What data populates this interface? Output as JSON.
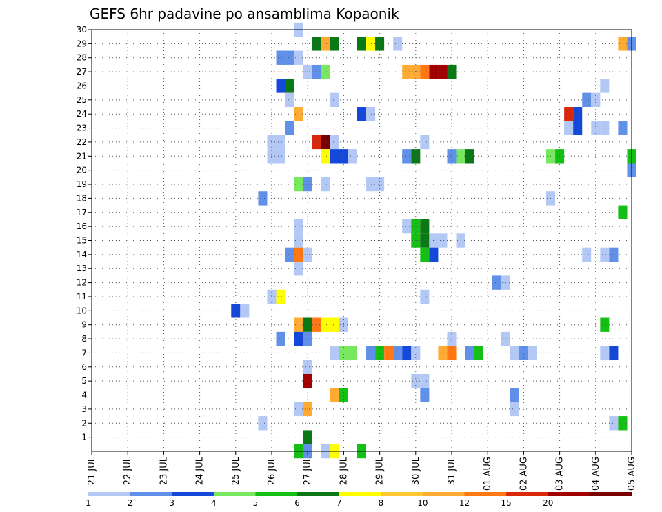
{
  "chart_data": {
    "type": "heatmap",
    "title": "GEFS 6hr padavine po ansamblima Kopaonik",
    "xlabel": "",
    "ylabel": "",
    "x_ticks": [
      "21 JUL",
      "22 JUL",
      "23 JUL",
      "24 JUL",
      "25 JUL",
      "26 JUL",
      "27 JUL",
      "28 JUL",
      "29 JUL",
      "30 JUL",
      "31 JUL",
      "01 AUG",
      "02 AUG",
      "03 AUG",
      "04 AUG",
      "05 AUG"
    ],
    "xlim": [
      0,
      15
    ],
    "y_ticks": [
      "1",
      "2",
      "3",
      "4",
      "5",
      "6",
      "7",
      "8",
      "9",
      "10",
      "11",
      "12",
      "13",
      "14",
      "15",
      "16",
      "17",
      "18",
      "19",
      "20",
      "21",
      "22",
      "23",
      "24",
      "25",
      "26",
      "27",
      "28",
      "29",
      "30"
    ],
    "ylim": [
      0,
      30
    ],
    "grid": true,
    "colorbar": {
      "labels": [
        "1",
        "2",
        "3",
        "4",
        "5",
        "6",
        "7",
        "8",
        "10",
        "12",
        "15",
        "20"
      ],
      "colors": [
        "#b4c8f5",
        "#6090e8",
        "#1448d8",
        "#78e860",
        "#14c014",
        "#0a7814",
        "#ffff00",
        "#ffc832",
        "#ffaa32",
        "#ff7814",
        "#dc280a",
        "#a00000",
        "#780000"
      ]
    },
    "cells": [
      [
        5.75,
        30,
        0
      ],
      [
        6.25,
        29,
        5
      ],
      [
        6.5,
        29,
        8
      ],
      [
        6.75,
        29,
        5
      ],
      [
        7.5,
        29,
        5
      ],
      [
        7.75,
        29,
        6
      ],
      [
        8,
        29,
        5
      ],
      [
        8.5,
        29,
        0
      ],
      [
        14.75,
        29,
        8
      ],
      [
        15,
        29,
        1
      ],
      [
        5.25,
        28,
        1
      ],
      [
        5.5,
        28,
        1
      ],
      [
        5.75,
        28,
        0
      ],
      [
        6,
        27,
        0
      ],
      [
        6.25,
        27,
        1
      ],
      [
        6.5,
        27,
        3
      ],
      [
        8.75,
        27,
        8
      ],
      [
        9,
        27,
        8
      ],
      [
        9.25,
        27,
        9
      ],
      [
        9.5,
        27,
        11
      ],
      [
        9.75,
        27,
        11
      ],
      [
        10,
        27,
        5
      ],
      [
        14.25,
        26,
        0
      ],
      [
        5.25,
        26,
        2
      ],
      [
        5.5,
        26,
        5
      ],
      [
        5.5,
        25,
        0
      ],
      [
        6.75,
        25,
        0
      ],
      [
        13.75,
        25,
        1
      ],
      [
        14,
        25,
        0
      ],
      [
        5.75,
        24,
        8
      ],
      [
        7.5,
        24,
        2
      ],
      [
        7.75,
        24,
        0
      ],
      [
        13.25,
        24,
        10
      ],
      [
        13.5,
        24,
        2
      ],
      [
        5.5,
        23,
        1
      ],
      [
        13.25,
        23,
        0
      ],
      [
        13.5,
        23,
        2
      ],
      [
        14,
        23,
        0
      ],
      [
        14.25,
        23,
        0
      ],
      [
        14.75,
        23,
        1
      ],
      [
        5,
        22,
        0
      ],
      [
        5.25,
        22,
        0
      ],
      [
        6.25,
        22,
        10
      ],
      [
        6.5,
        22,
        12
      ],
      [
        6.75,
        22,
        0
      ],
      [
        9.25,
        22,
        0
      ],
      [
        5,
        21,
        0
      ],
      [
        5.25,
        21,
        0
      ],
      [
        6.5,
        21,
        6
      ],
      [
        6.75,
        21,
        2
      ],
      [
        7,
        21,
        2
      ],
      [
        7.25,
        21,
        0
      ],
      [
        8.75,
        21,
        1
      ],
      [
        9,
        21,
        5
      ],
      [
        10,
        21,
        1
      ],
      [
        10.25,
        21,
        3
      ],
      [
        10.5,
        21,
        5
      ],
      [
        12.75,
        21,
        3
      ],
      [
        13,
        21,
        4
      ],
      [
        15,
        21,
        4
      ],
      [
        15,
        20,
        1
      ],
      [
        5.75,
        19,
        3
      ],
      [
        6,
        19,
        1
      ],
      [
        6.5,
        19,
        0
      ],
      [
        7.75,
        19,
        0
      ],
      [
        8,
        19,
        0
      ],
      [
        4.75,
        18,
        1
      ],
      [
        12.75,
        18,
        0
      ],
      [
        14.75,
        17,
        4
      ],
      [
        5.75,
        16,
        0
      ],
      [
        8.75,
        16,
        0
      ],
      [
        9,
        16,
        4
      ],
      [
        9.25,
        16,
        5
      ],
      [
        5.75,
        15,
        0
      ],
      [
        9,
        15,
        4
      ],
      [
        9.25,
        15,
        5
      ],
      [
        9.5,
        15,
        0
      ],
      [
        9.75,
        15,
        0
      ],
      [
        10.25,
        15,
        0
      ],
      [
        5.5,
        14,
        1
      ],
      [
        5.75,
        14,
        9
      ],
      [
        6,
        14,
        0
      ],
      [
        9.25,
        14,
        4
      ],
      [
        9.5,
        14,
        2
      ],
      [
        13.75,
        14,
        0
      ],
      [
        14.25,
        14,
        0
      ],
      [
        14.5,
        14,
        1
      ],
      [
        5.75,
        13,
        0
      ],
      [
        11.25,
        12,
        1
      ],
      [
        11.5,
        12,
        0
      ],
      [
        5,
        11,
        0
      ],
      [
        5.25,
        11,
        6
      ],
      [
        9.25,
        11,
        0
      ],
      [
        4,
        10,
        2
      ],
      [
        4.25,
        10,
        0
      ],
      [
        5.75,
        9,
        8
      ],
      [
        6,
        9,
        5
      ],
      [
        6.25,
        9,
        9
      ],
      [
        6.5,
        9,
        6
      ],
      [
        6.75,
        9,
        6
      ],
      [
        7,
        9,
        0
      ],
      [
        14.25,
        9,
        4
      ],
      [
        5.25,
        8,
        1
      ],
      [
        5.75,
        8,
        2
      ],
      [
        6,
        8,
        1
      ],
      [
        10,
        8,
        0
      ],
      [
        11.5,
        8,
        0
      ],
      [
        6.75,
        7,
        0
      ],
      [
        7,
        7,
        3
      ],
      [
        7.25,
        7,
        3
      ],
      [
        7.75,
        7,
        1
      ],
      [
        8,
        7,
        4
      ],
      [
        8.25,
        7,
        9
      ],
      [
        8.5,
        7,
        1
      ],
      [
        8.75,
        7,
        2
      ],
      [
        9,
        7,
        0
      ],
      [
        9.75,
        7,
        8
      ],
      [
        10,
        7,
        9
      ],
      [
        10.5,
        7,
        1
      ],
      [
        10.75,
        7,
        4
      ],
      [
        11.75,
        7,
        0
      ],
      [
        12,
        7,
        1
      ],
      [
        12.25,
        7,
        0
      ],
      [
        14.25,
        7,
        0
      ],
      [
        14.5,
        7,
        2
      ],
      [
        6,
        6,
        0
      ],
      [
        6,
        5,
        11
      ],
      [
        9,
        5,
        0
      ],
      [
        9.25,
        5,
        0
      ],
      [
        6.75,
        4,
        8
      ],
      [
        7,
        4,
        4
      ],
      [
        9.25,
        4,
        1
      ],
      [
        11.75,
        4,
        1
      ],
      [
        5.75,
        3,
        0
      ],
      [
        6,
        3,
        8
      ],
      [
        11.75,
        3,
        0
      ],
      [
        4.75,
        2,
        0
      ],
      [
        14.5,
        2,
        0
      ],
      [
        14.75,
        2,
        4
      ],
      [
        6,
        1,
        5
      ],
      [
        5.75,
        0,
        4
      ],
      [
        6,
        0,
        1
      ],
      [
        6.5,
        0,
        0
      ],
      [
        6.75,
        0,
        6
      ],
      [
        7.5,
        0,
        4
      ]
    ]
  }
}
